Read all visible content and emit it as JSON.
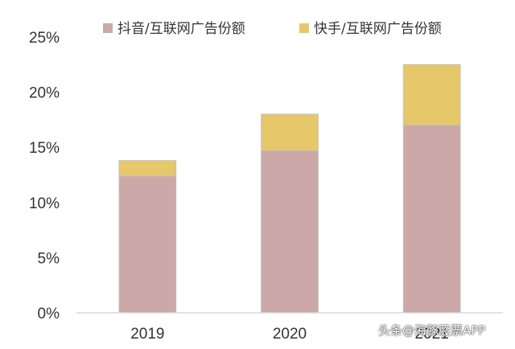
{
  "chart_data": {
    "type": "bar",
    "stacked": true,
    "title": "",
    "xlabel": "",
    "ylabel": "",
    "categories": [
      "2019",
      "2020",
      "2021"
    ],
    "series": [
      {
        "name": "抖音/互联网广告份额",
        "values": [
          12.4,
          14.7,
          17.0
        ],
        "color": "#cca8a8"
      },
      {
        "name": "快手/互联网广告份额",
        "values": [
          1.4,
          3.3,
          5.5
        ],
        "color": "#e6c86a"
      }
    ],
    "ylim": [
      0,
      25
    ],
    "yticks": [
      0,
      5,
      10,
      15,
      20,
      25
    ],
    "ytick_labels": [
      "0%",
      "5%",
      "10%",
      "15%",
      "20%",
      "25%"
    ],
    "grid": false,
    "legend_position": "top-center"
  },
  "watermark": "头条@海豚股票APP"
}
